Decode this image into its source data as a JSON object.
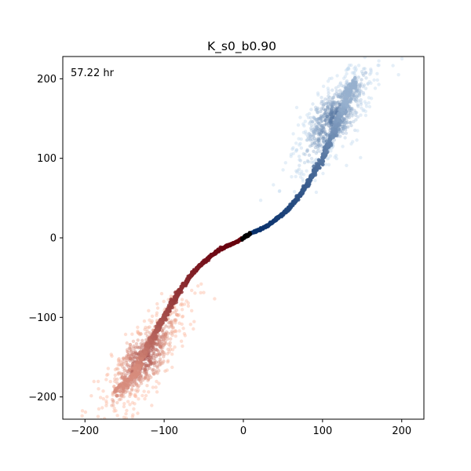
{
  "chart_data": {
    "type": "scatter",
    "title": "K_s0_b0.90",
    "annotation": "57.22 hr",
    "xlabel": "",
    "ylabel": "",
    "xlim": [
      -228,
      228
    ],
    "ylim": [
      -228,
      228
    ],
    "xticks": [
      -200,
      -100,
      0,
      100,
      200
    ],
    "yticks": [
      -200,
      -100,
      0,
      100,
      200
    ],
    "grid": false,
    "legend": "none",
    "series": [
      {
        "colormap": "Blues",
        "color_dark": "#08306b",
        "color_light": "#c6dbef",
        "trail": [
          [
            0,
            0
          ],
          [
            10,
            6
          ],
          [
            20,
            10
          ],
          [
            30,
            15
          ],
          [
            40,
            22
          ],
          [
            50,
            30
          ],
          [
            60,
            40
          ],
          [
            70,
            52
          ],
          [
            80,
            66
          ],
          [
            90,
            82
          ],
          [
            100,
            100
          ],
          [
            108,
            118
          ],
          [
            116,
            138
          ],
          [
            124,
            158
          ],
          [
            132,
            178
          ],
          [
            140,
            196
          ]
        ],
        "cloud": {
          "center": [
            115,
            152
          ],
          "spread_along": 40,
          "spread_across": 14,
          "angle_deg": 55
        }
      },
      {
        "colormap": "Reds",
        "color_dark": "#67000d",
        "color_light": "#fcbba1",
        "trail": [
          [
            0,
            0
          ],
          [
            -10,
            -6
          ],
          [
            -20,
            -10
          ],
          [
            -30,
            -15
          ],
          [
            -40,
            -22
          ],
          [
            -50,
            -30
          ],
          [
            -60,
            -40
          ],
          [
            -70,
            -52
          ],
          [
            -80,
            -66
          ],
          [
            -90,
            -82
          ],
          [
            -100,
            -100
          ],
          [
            -110,
            -118
          ],
          [
            -120,
            -136
          ],
          [
            -130,
            -154
          ],
          [
            -140,
            -172
          ],
          [
            -160,
            -194
          ]
        ],
        "cloud": {
          "center": [
            -126,
            -152
          ],
          "spread_along": 40,
          "spread_across": 14,
          "angle_deg": 55
        }
      }
    ],
    "origin_marker_color": "#000000"
  }
}
